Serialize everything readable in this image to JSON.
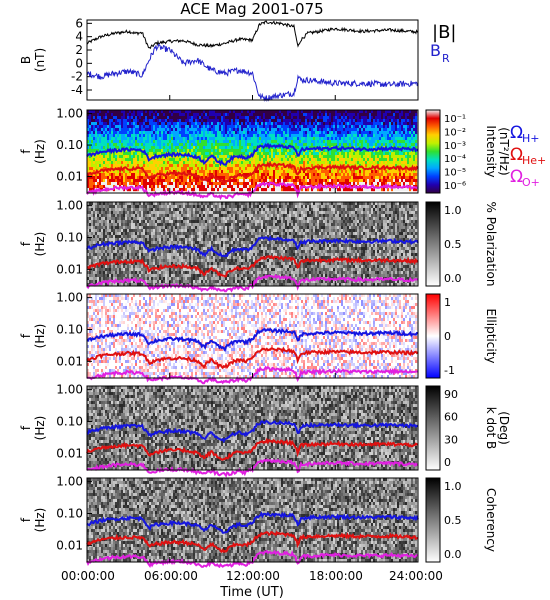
{
  "chart_data": {
    "type": "spectrogram",
    "title": "ACE Mag 2001-075",
    "xlabel": "Time (UT)",
    "xticks": [
      "00:00:00",
      "06:00:00",
      "12:00:00",
      "18:00:00",
      "24:00:00"
    ],
    "xlim_hours": [
      0,
      24
    ],
    "panels": [
      {
        "name": "field",
        "type": "line",
        "ylabel": [
          "B",
          "(nT)"
        ],
        "yticks": [
          "6",
          "4",
          "2",
          "0",
          "-2",
          "-4"
        ],
        "ylim": [
          -5.5,
          6.5
        ],
        "legend": [
          "|B|",
          "B",
          "R"
        ],
        "series": [
          {
            "name": "|B|",
            "color": "#000000",
            "x": [
              0,
              1,
              2,
              3,
              3.5,
              4,
              4.5,
              5,
              6,
              7,
              8,
              9,
              10,
              11,
              12,
              12.5,
              13,
              14,
              15,
              15.3,
              15.5,
              16,
              18,
              20,
              22,
              24
            ],
            "values": [
              3,
              4,
              4.5,
              4.8,
              4.5,
              4.6,
              2.2,
              3.0,
              3.3,
              3.4,
              2.8,
              2.6,
              3.0,
              3.6,
              3.5,
              5.8,
              6.2,
              6.0,
              5.5,
              2.5,
              3.5,
              4.5,
              5.2,
              4.8,
              5.0,
              4.7
            ]
          },
          {
            "name": "B_R",
            "color": "#2222cc",
            "x": [
              0,
              1,
              2,
              3,
              4,
              4.5,
              5,
              6,
              7,
              8,
              9,
              10,
              11,
              12,
              12.5,
              13,
              14,
              15,
              15.3,
              15.5,
              16,
              18,
              20,
              22,
              24
            ],
            "values": [
              -1.5,
              -2,
              -1.5,
              -1.2,
              -1.8,
              0.5,
              2.5,
              2.0,
              0,
              0.5,
              -1,
              -1.5,
              -1.0,
              -1.5,
              -5,
              -5.2,
              -4.8,
              -4.5,
              -2,
              -2.5,
              -2.5,
              -3,
              -3.0,
              -3.2,
              -3.0
            ]
          }
        ]
      },
      {
        "name": "intensity",
        "type": "heatmap",
        "ylabel": [
          "f",
          "(Hz)"
        ],
        "yticks": [
          "1.00",
          "0.10",
          "0.01"
        ],
        "colorbar": {
          "label": [
            "Intensity",
            "(nT²/Hz)"
          ],
          "ticks": [
            "10⁻¹",
            "10⁻²",
            "10⁻³",
            "10⁻⁴",
            "10⁻⁵",
            "10⁻⁶"
          ],
          "palette": [
            "#320044",
            "#2000b0",
            "#0040ff",
            "#00a8ff",
            "#00e0c0",
            "#30e030",
            "#c0f000",
            "#ffd000",
            "#ff6000",
            "#e00000",
            "#f0f0f0"
          ]
        },
        "legend": [
          {
            "sym": "Ω",
            "sub": "H+",
            "color": "#1515e0"
          },
          {
            "sym": "Ω",
            "sub": "He+",
            "color": "#e01010"
          },
          {
            "sym": "Ω",
            "sub": "O+",
            "color": "#e020e0"
          }
        ]
      },
      {
        "name": "polarization",
        "type": "heatmap",
        "ylabel": [
          "f",
          "(Hz)"
        ],
        "yticks": [
          "1.00",
          "0.10",
          "0.01"
        ],
        "colorbar": {
          "label": [
            "% Polarization"
          ],
          "ticks": [
            "1.0",
            "0.5",
            "0.0"
          ],
          "palette": [
            "#000000",
            "#ffffff"
          ]
        }
      },
      {
        "name": "ellipticity",
        "type": "heatmap",
        "ylabel": [
          "f",
          "(Hz)"
        ],
        "yticks": [
          "1.00",
          "0.10",
          "0.01"
        ],
        "colorbar": {
          "label": [
            "Ellipticity"
          ],
          "ticks": [
            "1",
            "0",
            "-1"
          ],
          "palette": [
            "#0000ff",
            "#ffffff",
            "#ff0000"
          ]
        }
      },
      {
        "name": "kdotb",
        "type": "heatmap",
        "ylabel": [
          "f",
          "(Hz)"
        ],
        "yticks": [
          "1.00",
          "0.10",
          "0.01"
        ],
        "colorbar": {
          "label": [
            "k dot B",
            "(Deg)"
          ],
          "ticks": [
            "90",
            "60",
            "30",
            "0"
          ],
          "palette": [
            "#000000",
            "#ffffff"
          ]
        }
      },
      {
        "name": "coherency",
        "type": "heatmap",
        "ylabel": [
          "f",
          "(Hz)"
        ],
        "yticks": [
          "1.00",
          "0.10",
          "0.01"
        ],
        "colorbar": {
          "label": [
            "Coherency"
          ],
          "ticks": [
            "1.0",
            "0.5",
            "0.0"
          ],
          "palette": [
            "#000000",
            "#ffffff"
          ]
        }
      }
    ],
    "gyrofrequency_curves": [
      {
        "name": "H+",
        "color": "#1515e0",
        "x": [
          0,
          1,
          2,
          3,
          4,
          4.5,
          5,
          6,
          7,
          8,
          8.5,
          9,
          9.5,
          10,
          10.5,
          11,
          11.5,
          12,
          12.5,
          13,
          14,
          15,
          15.3,
          15.5,
          16,
          18,
          20,
          22,
          24
        ],
        "values_hz": [
          0.045,
          0.06,
          0.068,
          0.072,
          0.07,
          0.035,
          0.045,
          0.05,
          0.05,
          0.042,
          0.028,
          0.045,
          0.03,
          0.025,
          0.038,
          0.045,
          0.04,
          0.05,
          0.09,
          0.095,
          0.09,
          0.085,
          0.04,
          0.07,
          0.075,
          0.08,
          0.075,
          0.078,
          0.072
        ]
      },
      {
        "name": "He+",
        "color": "#e01010",
        "x": [
          0,
          1,
          2,
          3,
          4,
          4.5,
          5,
          6,
          7,
          8,
          8.5,
          9,
          9.5,
          10,
          10.5,
          11,
          11.5,
          12,
          12.5,
          13,
          14,
          15,
          15.3,
          15.5,
          16,
          18,
          20,
          22,
          24
        ],
        "values_hz": [
          0.011,
          0.015,
          0.017,
          0.018,
          0.0175,
          0.009,
          0.011,
          0.0125,
          0.0125,
          0.0105,
          0.007,
          0.011,
          0.0075,
          0.0063,
          0.0095,
          0.011,
          0.01,
          0.0125,
          0.022,
          0.024,
          0.023,
          0.021,
          0.01,
          0.0175,
          0.019,
          0.02,
          0.019,
          0.0195,
          0.018
        ]
      },
      {
        "name": "O+",
        "color": "#e020e0",
        "x": [
          0,
          1,
          2,
          3,
          4,
          4.5,
          5,
          6,
          7,
          8,
          8.5,
          9,
          9.5,
          10,
          10.5,
          11,
          11.5,
          12,
          12.5,
          13,
          14,
          15,
          15.3,
          15.5,
          16,
          18,
          20,
          22,
          24
        ],
        "values_hz": [
          0.0029,
          0.0037,
          0.0043,
          0.0045,
          0.0044,
          0.0025,
          0.0028,
          0.0031,
          0.0031,
          0.0026,
          0.0022,
          0.0028,
          0.0023,
          0.0022,
          0.0024,
          0.0028,
          0.0025,
          0.0031,
          0.0056,
          0.006,
          0.0057,
          0.0053,
          0.0025,
          0.0044,
          0.0047,
          0.005,
          0.0047,
          0.0049,
          0.0045
        ]
      }
    ],
    "flim_hz": [
      0.003,
      1.3
    ]
  }
}
